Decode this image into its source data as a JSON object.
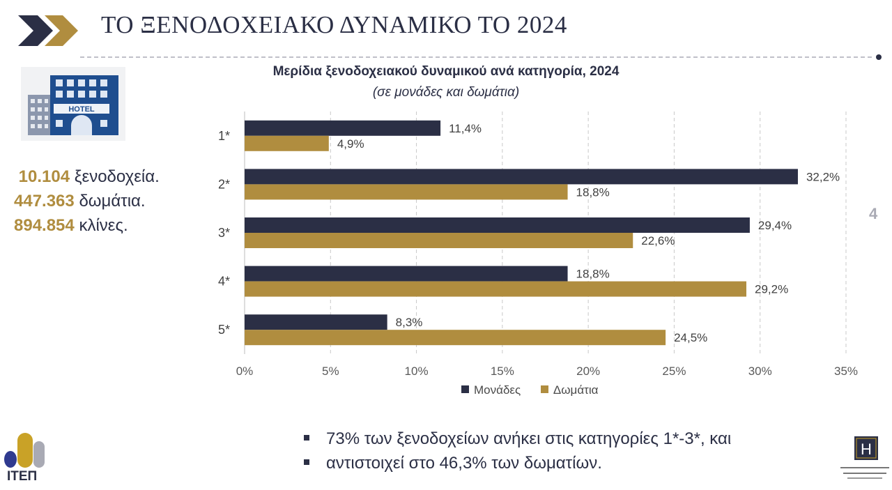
{
  "header": {
    "title": "ΤΟ ΞΕΝΟΔΟΧΕΙΑΚΟ ΔΥΝΑΜΙΚΟ ΤΟ 2024",
    "icon": "double-chevron-icon"
  },
  "hotel_image": {
    "sign": "HOTEL"
  },
  "stats": [
    {
      "value": "10.104",
      "label": "ξενοδοχεία."
    },
    {
      "value": "447.363",
      "label": "δωμάτια."
    },
    {
      "value": "894.854",
      "label": "κλίνες."
    }
  ],
  "chart_data": {
    "type": "bar",
    "orientation": "horizontal",
    "title": "Μερίδια ξενοδοχειακού δυναμικού ανά κατηγορία, 2024",
    "subtitle": "(σε μονάδες και δωμάτια)",
    "categories": [
      "1*",
      "2*",
      "3*",
      "4*",
      "5*"
    ],
    "series": [
      {
        "name": "Μονάδες",
        "color": "#2b2f45",
        "values": [
          11.4,
          32.2,
          29.4,
          18.8,
          8.3
        ],
        "labels": [
          "11,4%",
          "32,2%",
          "29,4%",
          "18,8%",
          "8,3%"
        ]
      },
      {
        "name": "Δωμάτια",
        "color": "#b08d3f",
        "values": [
          4.9,
          18.8,
          22.6,
          29.2,
          24.5
        ],
        "labels": [
          "4,9%",
          "18,8%",
          "22,6%",
          "29,2%",
          "24,5%"
        ]
      }
    ],
    "xlim": [
      0,
      35
    ],
    "xticks": [
      0,
      5,
      10,
      15,
      20,
      25,
      30,
      35
    ],
    "xtick_labels": [
      "0%",
      "5%",
      "10%",
      "15%",
      "20%",
      "25%",
      "30%",
      "35%"
    ],
    "grid": "vertical-dashed",
    "legend_position": "bottom"
  },
  "page_number": "4",
  "bullets": [
    "73% των ξενοδοχείων ανήκει στις κατηγορίες  1*-3*, και",
    "αντιστοιχεί στο 46,3% των δωματίων."
  ],
  "footer": {
    "logo_left_text": "ΙΤΕΠ",
    "logo_right_letter": "H"
  },
  "colors": {
    "navy": "#2b2f45",
    "gold": "#b08d3f",
    "grid": "#c8c8c8"
  }
}
